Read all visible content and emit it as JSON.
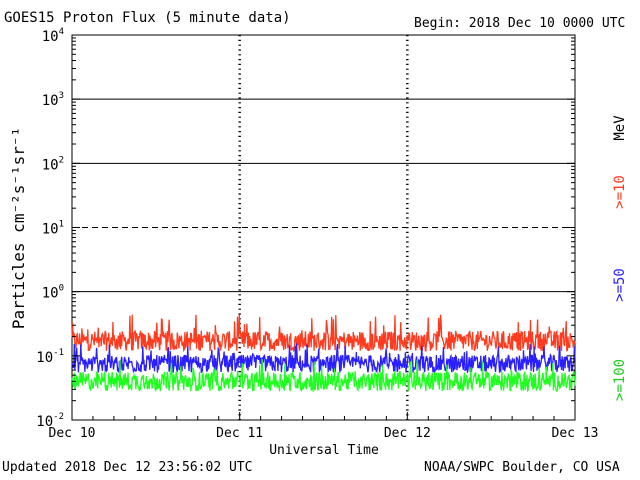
{
  "chart_data": {
    "type": "line",
    "title": "GOES15 Proton Flux (5 minute data)",
    "begin_label": "Begin: 2018 Dec 10 0000 UTC",
    "ylabel": "Particles cm⁻²s⁻¹sr⁻¹",
    "xlabel": "Universal Time",
    "yscale": "log",
    "ylim": [
      0.01,
      10000
    ],
    "y_ticks": [
      {
        "exp": "10",
        "sup": "-2"
      },
      {
        "exp": "10",
        "sup": "-1"
      },
      {
        "exp": "10",
        "sup": "0"
      },
      {
        "exp": "10",
        "sup": "1"
      },
      {
        "exp": "10",
        "sup": "2"
      },
      {
        "exp": "10",
        "sup": "3"
      },
      {
        "exp": "10",
        "sup": "4"
      }
    ],
    "x_ticks": [
      "Dec 10",
      "Dec 11",
      "Dec 12",
      "Dec 13"
    ],
    "xlim": [
      "2018-12-10 00:00",
      "2018-12-13 00:00"
    ],
    "threshold_lines": [
      {
        "value": 1,
        "style": "solid"
      },
      {
        "value": 10,
        "style": "dashed"
      },
      {
        "value": 100,
        "style": "solid"
      },
      {
        "value": 1000,
        "style": "solid"
      }
    ],
    "unit_label": "MeV",
    "series": [
      {
        "name": ">=10",
        "color": "#ff3b1f",
        "typical": 0.17,
        "range": [
          0.12,
          0.45
        ]
      },
      {
        "name": ">=50",
        "color": "#2a1fff",
        "typical": 0.075,
        "range": [
          0.05,
          0.16
        ]
      },
      {
        "name": ">=100",
        "color": "#1fff1f",
        "typical": 0.04,
        "range": [
          0.025,
          0.09
        ]
      }
    ]
  },
  "footer": {
    "updated": "Updated 2018 Dec 12 23:56:02 UTC",
    "source": "NOAA/SWPC Boulder, CO USA"
  }
}
